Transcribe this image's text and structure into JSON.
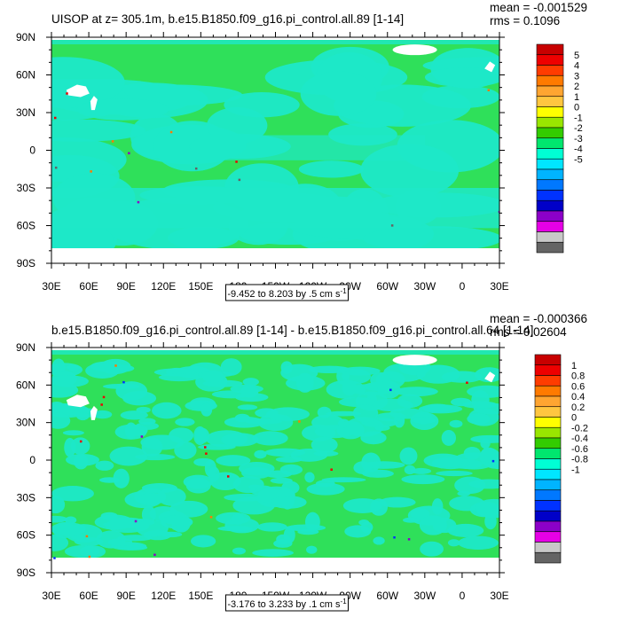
{
  "chart_data": [
    {
      "type": "heatmap",
      "title": "UISOP at z= 305.1m, b.e15.B1850.f09_g16.pi_control.all.89 [1-14]",
      "stats": {
        "mean": "mean = -0.001529",
        "rms": "rms = 0.1096"
      },
      "x_ticks": [
        "30E",
        "60E",
        "90E",
        "120E",
        "150E",
        "180",
        "150W",
        "120W",
        "90W",
        "60W",
        "30W",
        "0",
        "30E"
      ],
      "y_ticks": [
        "90N",
        "60N",
        "30N",
        "0",
        "30S",
        "60S",
        "90S"
      ],
      "range_label": "-9.452 to 8.203 by .5 cm s",
      "range_exponent": "-1",
      "xlim": [
        30,
        390
      ],
      "ylim": [
        -90,
        90
      ],
      "colorbar": {
        "labels": [
          "5",
          "4",
          "3",
          "2",
          "1",
          "0",
          "-1",
          "-2",
          "-3",
          "-4",
          "-5"
        ],
        "colors": [
          "#c80000",
          "#ee0000",
          "#ff3c00",
          "#ff7a00",
          "#ffa531",
          "#ffc640",
          "#ffff00",
          "#99e600",
          "#33cc00",
          "#00e66e",
          "#00ffd4",
          "#00e6ff",
          "#00b4ff",
          "#0078ff",
          "#0032ff",
          "#0000c8",
          "#8c00c8",
          "#e600e6",
          "#c8c8c8",
          "#646464"
        ]
      },
      "base_color": "#2fe05a",
      "secondary_color": "#1ee8c8"
    },
    {
      "type": "heatmap",
      "title": "b.e15.B1850.f09_g16.pi_control.all.89 [1-14] - b.e15.B1850.f09_g16.pi_control.all.64 [1-14]",
      "stats": {
        "mean": "mean = -0.000366",
        "rms": "rms = 0.02604"
      },
      "x_ticks": [
        "30E",
        "60E",
        "90E",
        "120E",
        "150E",
        "180",
        "150W",
        "120W",
        "90W",
        "60W",
        "30W",
        "0",
        "30E"
      ],
      "y_ticks": [
        "90N",
        "60N",
        "30N",
        "0",
        "30S",
        "60S",
        "90S"
      ],
      "range_label": "-3.176 to 3.233 by .1 cm s",
      "range_exponent": "-1",
      "xlim": [
        30,
        390
      ],
      "ylim": [
        -90,
        90
      ],
      "colorbar": {
        "labels": [
          "1",
          "0.8",
          "0.6",
          "0.4",
          "0.2",
          "0",
          "-0.2",
          "-0.4",
          "-0.6",
          "-0.8",
          "-1"
        ],
        "colors": [
          "#c80000",
          "#ee0000",
          "#ff3c00",
          "#ff7a00",
          "#ffa531",
          "#ffc640",
          "#ffff00",
          "#99e600",
          "#33cc00",
          "#00e66e",
          "#00ffd4",
          "#00e6ff",
          "#00b4ff",
          "#0078ff",
          "#0032ff",
          "#0000c8",
          "#8c00c8",
          "#e600e6",
          "#c8c8c8",
          "#646464"
        ]
      },
      "base_color": "#2fe05a",
      "secondary_color": "#1ee8c8"
    }
  ]
}
